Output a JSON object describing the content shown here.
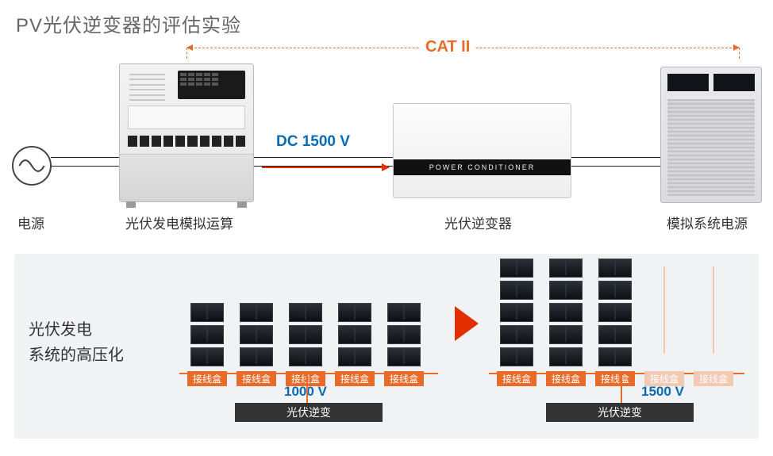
{
  "title": "PV光伏逆变器的评估实验",
  "topRow": {
    "catLabel": "CAT II",
    "dcLabel": "DC 1500 V",
    "conditionerBand": "POWER CONDITIONER",
    "labels": {
      "acSource": "电源",
      "pvSim": "光伏发电模拟运算",
      "inverter": "光伏逆变器",
      "sysPower": "模拟系统电源"
    }
  },
  "lower": {
    "heading1": "光伏发电",
    "heading2": "系统的高压化",
    "leftSystem": {
      "panelRows": 3,
      "columns": 5,
      "junctionLabel": "接线盒",
      "voltage": "1000 V",
      "inverterLabel": "光伏逆变"
    },
    "rightSystem": {
      "panelRowsTall": 5,
      "columnsTall": 3,
      "ghostColumns": 2,
      "junctionLabel": "接线盒",
      "voltage": "1500 V",
      "inverterLabel": "光伏逆变"
    }
  },
  "colors": {
    "orange": "#e86b2a",
    "orangeFaded": "#f3c9b3",
    "blue": "#0a6bb5",
    "panelDark": "#14181d",
    "grayBg": "#f1f2f4"
  }
}
